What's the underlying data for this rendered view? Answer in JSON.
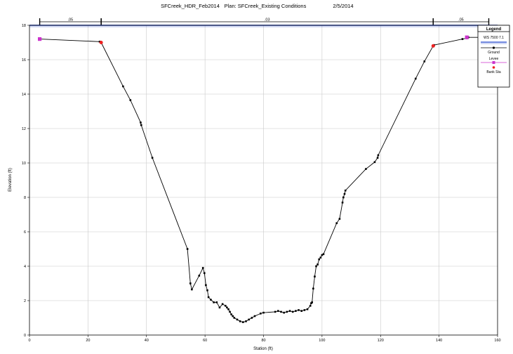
{
  "header": {
    "project": "SFCreek_HDR_Feb2014",
    "plan": "Plan: SFCreek_Existing Conditions",
    "date": "2/5/2014"
  },
  "chart_data": {
    "type": "line",
    "xlabel": "Station (ft)",
    "ylabel": "Elevation (ft)",
    "xlim": [
      0,
      160
    ],
    "ylim": [
      0,
      18
    ],
    "x_ticks": [
      0,
      20,
      40,
      60,
      80,
      100,
      120,
      140,
      160
    ],
    "y_ticks": [
      0,
      2,
      4,
      6,
      8,
      10,
      12,
      14,
      16,
      18
    ],
    "grid": true,
    "legend_position": "top-right",
    "legend_title": "Legend",
    "water_surface": {
      "name": "WS 7500 7.1",
      "elevation": 18.0
    },
    "manning_n": [
      {
        "label": ".05",
        "from": 3.5,
        "to": 24.5
      },
      {
        "label": ".03",
        "from": 24.5,
        "to": 138
      },
      {
        "label": ".05",
        "from": 138,
        "to": 157
      }
    ],
    "series": [
      {
        "name": "Ground",
        "color": "#000000",
        "x": [
          3.5,
          24,
          24.5,
          32,
          34.5,
          38,
          38.2,
          42,
          54,
          55,
          55.5,
          58,
          59.3,
          59.8,
          60.3,
          60.8,
          61.2,
          62,
          63,
          64,
          65,
          66,
          67,
          67.5,
          68,
          68.5,
          69,
          69.5,
          70,
          71,
          72,
          73,
          74,
          75,
          76,
          77,
          79,
          80,
          84,
          85,
          86,
          87,
          88,
          89,
          90,
          91,
          92,
          93,
          94,
          95,
          96,
          96.3,
          96.6,
          97,
          97.5,
          98,
          98.5,
          99,
          99.5,
          100,
          100.5,
          105,
          106,
          107,
          107.3,
          107.7,
          108,
          115,
          118,
          119,
          119.2,
          132,
          135,
          138,
          138.3,
          148,
          149.5,
          150,
          157
        ],
        "y": [
          17.2,
          17.05,
          17.0,
          14.45,
          13.65,
          12.35,
          12.2,
          10.3,
          5.0,
          3.0,
          2.65,
          3.45,
          3.9,
          3.6,
          2.9,
          2.6,
          2.2,
          2.05,
          1.9,
          1.9,
          1.6,
          1.8,
          1.7,
          1.6,
          1.5,
          1.35,
          1.2,
          1.1,
          1.0,
          0.9,
          0.8,
          0.75,
          0.8,
          0.9,
          1.0,
          1.1,
          1.25,
          1.3,
          1.35,
          1.4,
          1.35,
          1.3,
          1.35,
          1.4,
          1.35,
          1.4,
          1.45,
          1.4,
          1.45,
          1.5,
          1.7,
          1.85,
          1.9,
          2.7,
          3.4,
          4.0,
          4.1,
          4.4,
          4.5,
          4.65,
          4.7,
          6.5,
          6.75,
          7.7,
          8.0,
          8.2,
          8.4,
          9.65,
          10.05,
          10.3,
          10.45,
          14.9,
          15.9,
          16.8,
          16.85,
          17.2,
          17.25,
          17.3,
          17.3
        ]
      },
      {
        "name": "Levee",
        "color": "#cc33cc",
        "x": [
          3.5,
          149.5
        ],
        "y": [
          17.2,
          17.3
        ]
      },
      {
        "name": "Bank Sta",
        "color": "#ee2222",
        "x": [
          24.5,
          138
        ],
        "y": [
          17.0,
          16.8
        ]
      }
    ]
  }
}
